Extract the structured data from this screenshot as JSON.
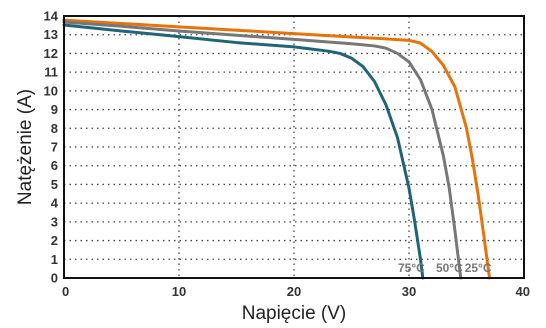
{
  "chart_data": {
    "type": "line",
    "xlabel": "Napięcie (V)",
    "ylabel": "Natężenie (A)",
    "xlim": [
      0,
      40
    ],
    "ylim": [
      0,
      14
    ],
    "xticks": [
      0,
      10,
      20,
      30,
      40
    ],
    "yticks": [
      0,
      1,
      2,
      3,
      4,
      5,
      6,
      7,
      8,
      9,
      10,
      11,
      12,
      13,
      14
    ],
    "grid": true,
    "series": [
      {
        "name": "25°C",
        "color": "#e8730a",
        "x": [
          0,
          5,
          10,
          15,
          20,
          25,
          28,
          30,
          31,
          32,
          33,
          34,
          35,
          35.5,
          36,
          36.5,
          37
        ],
        "y": [
          13.78,
          13.6,
          13.42,
          13.24,
          13.06,
          12.88,
          12.78,
          12.7,
          12.55,
          12.1,
          11.35,
          10.2,
          8.0,
          6.4,
          4.5,
          2.3,
          0
        ]
      },
      {
        "name": "50°C",
        "color": "#777777",
        "x": [
          0,
          5,
          10,
          15,
          20,
          25,
          27,
          28,
          29,
          30,
          31,
          32,
          33,
          33.5,
          34,
          34.5
        ],
        "y": [
          13.68,
          13.45,
          13.2,
          12.97,
          12.75,
          12.52,
          12.4,
          12.28,
          12.0,
          11.55,
          10.6,
          9.0,
          6.5,
          4.8,
          2.5,
          0
        ]
      },
      {
        "name": "75°C",
        "color": "#1f6478",
        "x": [
          0,
          5,
          10,
          15,
          20,
          23,
          24,
          25,
          26,
          27,
          28,
          29,
          30,
          30.5,
          31,
          31.2
        ],
        "y": [
          13.52,
          13.2,
          12.9,
          12.58,
          12.35,
          12.12,
          12.0,
          11.75,
          11.3,
          10.5,
          9.25,
          7.5,
          4.8,
          3.0,
          1.0,
          0
        ]
      }
    ]
  }
}
